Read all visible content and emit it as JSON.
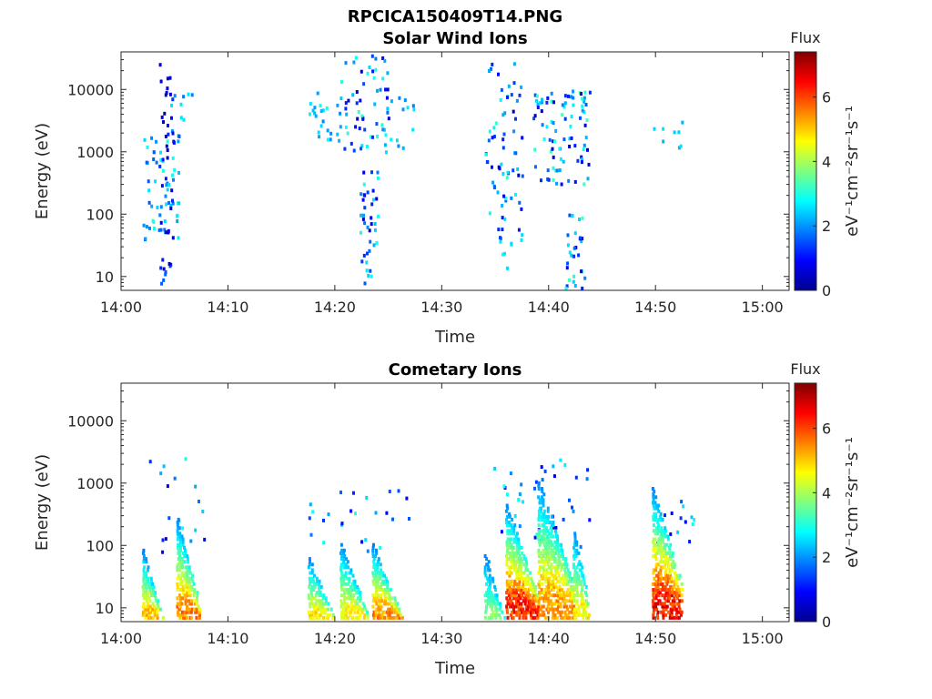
{
  "figure_title": "RPCICA150409T14.PNG",
  "chart_data": [
    {
      "type": "heatmap",
      "title": "Solar Wind Ions",
      "xlabel": "Time",
      "ylabel": "Energy (eV)",
      "y_scale": "log",
      "ylim": [
        6,
        40000
      ],
      "xlim_minutes": [
        0,
        62.5
      ],
      "x_tick_labels": [
        "14:00",
        "14:10",
        "14:20",
        "14:30",
        "14:40",
        "14:50",
        "15:00"
      ],
      "x_tick_minutes": [
        0,
        10,
        20,
        30,
        40,
        50,
        60
      ],
      "y_tick_labels": [
        "10",
        "100",
        "1000",
        "10000"
      ],
      "y_tick_values": [
        10,
        100,
        1000,
        10000
      ],
      "colorbar": {
        "label": "Flux",
        "units": "eV⁻¹cm⁻²sr⁻¹s⁻¹",
        "range": [
          0,
          7.4
        ],
        "tick_labels": [
          "0",
          "2",
          "4",
          "6"
        ],
        "tick_values": [
          0,
          2,
          4,
          6
        ],
        "colormap": "jet"
      },
      "clusters": [
        {
          "t": [
            2.0,
            5.5
          ],
          "e": [
            40,
            2500
          ],
          "v": [
            1.5,
            3.0
          ],
          "n": 60
        },
        {
          "t": [
            3.5,
            4.9
          ],
          "e": [
            10,
            40000
          ],
          "v": [
            0.3,
            1.4
          ],
          "n": 40
        },
        {
          "t": [
            3.6,
            4.2
          ],
          "e": [
            8,
            13
          ],
          "v": [
            1.6,
            1.6
          ],
          "n": 4
        },
        {
          "t": [
            4.5,
            7.5
          ],
          "e": [
            1500,
            10000
          ],
          "v": [
            1.8,
            2.8
          ],
          "n": 8
        },
        {
          "t": [
            17.5,
            20.5
          ],
          "e": [
            1500,
            10000
          ],
          "v": [
            1.8,
            3.0
          ],
          "n": 25
        },
        {
          "t": [
            20.5,
            25.0
          ],
          "e": [
            1000,
            40000
          ],
          "v": [
            0.4,
            3.2
          ],
          "n": 60
        },
        {
          "t": [
            22.3,
            24.0
          ],
          "e": [
            8,
            600
          ],
          "v": [
            0.5,
            3.0
          ],
          "n": 40
        },
        {
          "t": [
            25.0,
            27.5
          ],
          "e": [
            1200,
            10000
          ],
          "v": [
            1.8,
            2.8
          ],
          "n": 12
        },
        {
          "t": [
            34.0,
            37.5
          ],
          "e": [
            40,
            30000
          ],
          "v": [
            0.4,
            3.2
          ],
          "n": 70
        },
        {
          "t": [
            35.3,
            36.8
          ],
          "e": [
            14,
            40
          ],
          "v": [
            2.4,
            3.0
          ],
          "n": 6
        },
        {
          "t": [
            38.5,
            43.8
          ],
          "e": [
            300,
            10000
          ],
          "v": [
            0.4,
            3.3
          ],
          "n": 90
        },
        {
          "t": [
            41.5,
            43.3
          ],
          "e": [
            6,
            120
          ],
          "v": [
            0.5,
            3.3
          ],
          "n": 30
        },
        {
          "t": [
            49.5,
            52.5
          ],
          "e": [
            1200,
            6000
          ],
          "v": [
            2.2,
            2.8
          ],
          "n": 8
        }
      ]
    },
    {
      "type": "heatmap",
      "title": "Cometary Ions",
      "xlabel": "Time",
      "ylabel": "Energy (eV)",
      "y_scale": "log",
      "ylim": [
        6,
        40000
      ],
      "xlim_minutes": [
        0,
        62.5
      ],
      "x_tick_labels": [
        "14:00",
        "14:10",
        "14:20",
        "14:30",
        "14:40",
        "14:50",
        "15:00"
      ],
      "x_tick_minutes": [
        0,
        10,
        20,
        30,
        40,
        50,
        60
      ],
      "y_tick_labels": [
        "10",
        "100",
        "1000",
        "10000"
      ],
      "y_tick_values": [
        10,
        100,
        1000,
        10000
      ],
      "colorbar": {
        "label": "Flux",
        "units": "eV⁻¹cm⁻²sr⁻¹s⁻¹",
        "range": [
          0,
          7.4
        ],
        "tick_labels": [
          "0",
          "2",
          "4",
          "6"
        ],
        "tick_values": [
          0,
          2,
          4,
          6
        ],
        "colormap": "jet"
      },
      "bursts": [
        {
          "t0": 2.0,
          "t1": 3.8,
          "e_top": 90,
          "v_peak": 5.5
        },
        {
          "t0": 5.2,
          "t1": 7.2,
          "e_top": 300,
          "v_peak": 6.0
        },
        {
          "t0": 17.5,
          "t1": 20.0,
          "e_top": 70,
          "v_peak": 5.2
        },
        {
          "t0": 20.5,
          "t1": 23.0,
          "e_top": 120,
          "v_peak": 5.0
        },
        {
          "t0": 23.5,
          "t1": 26.2,
          "e_top": 110,
          "v_peak": 6.0
        },
        {
          "t0": 34.0,
          "t1": 35.8,
          "e_top": 80,
          "v_peak": 4.0
        },
        {
          "t0": 36.0,
          "t1": 39.0,
          "e_top": 500,
          "v_peak": 6.8
        },
        {
          "t0": 39.0,
          "t1": 42.3,
          "e_top": 1200,
          "v_peak": 5.8
        },
        {
          "t0": 42.3,
          "t1": 43.8,
          "e_top": 200,
          "v_peak": 5.0
        },
        {
          "t0": 49.7,
          "t1": 52.5,
          "e_top": 900,
          "v_peak": 7.0
        }
      ],
      "clusters": [
        {
          "t": [
            2.0,
            8.5
          ],
          "e": [
            80,
            3000
          ],
          "v": [
            0.6,
            3.0
          ],
          "n": 18
        },
        {
          "t": [
            17.5,
            27.0
          ],
          "e": [
            80,
            900
          ],
          "v": [
            0.6,
            3.0
          ],
          "n": 25
        },
        {
          "t": [
            34.5,
            44.0
          ],
          "e": [
            100,
            2500
          ],
          "v": [
            0.6,
            3.0
          ],
          "n": 40
        },
        {
          "t": [
            50.0,
            53.5
          ],
          "e": [
            100,
            600
          ],
          "v": [
            0.8,
            3.0
          ],
          "n": 15
        }
      ]
    }
  ]
}
